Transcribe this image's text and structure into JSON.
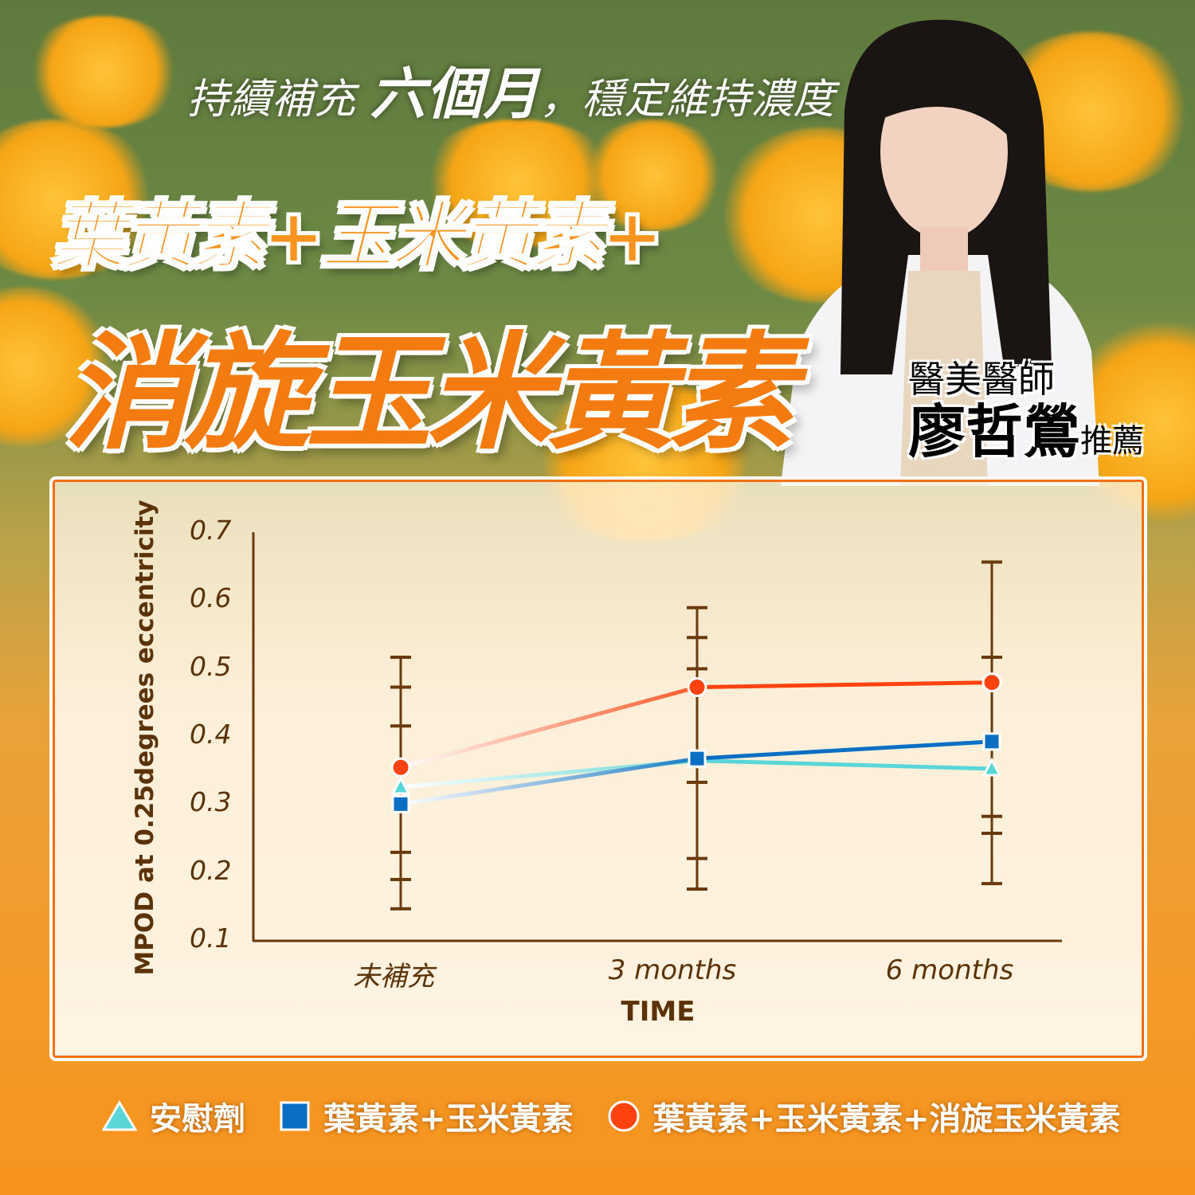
{
  "header": {
    "subtitle_pre": "持續補充 ",
    "subtitle_bold": "六個月",
    "subtitle_post": "，穩定維持濃度",
    "title_line1": "葉黃素+玉米黃素+",
    "title_line2": "消旋玉米黃素"
  },
  "doctor": {
    "role": "醫美醫師",
    "name": "廖哲鶯",
    "suffix": "推薦"
  },
  "chart_data": {
    "type": "line",
    "title": "",
    "xlabel": "TIME",
    "ylabel": "MPOD at 0.25degrees eccentricity",
    "categories": [
      "未補充",
      "3 months",
      "6 months"
    ],
    "ylim": [
      0.1,
      0.7
    ],
    "yticks": [
      "0.1",
      "0.2",
      "0.3",
      "0.4",
      "0.5",
      "0.6",
      "0.7"
    ],
    "grid": false,
    "legend_position": "bottom",
    "series": [
      {
        "name": "安慰劑",
        "marker": "triangle",
        "color": "#5ad6d8",
        "values": [
          0.325,
          0.364,
          0.352
        ]
      },
      {
        "name": "葉黃素+玉米黃素",
        "marker": "square",
        "color": "#0a6fc2",
        "values": [
          0.3,
          0.367,
          0.392
        ]
      },
      {
        "name": "葉黃素+玉米黃素+消旋玉米黃素",
        "marker": "circle",
        "color": "#ff4310",
        "values": [
          0.354,
          0.472,
          0.479
        ]
      }
    ],
    "error_bar_caps": [
      [
        0.516,
        0.472,
        0.415,
        0.229,
        0.189,
        0.146
      ],
      [
        0.589,
        0.545,
        0.499,
        0.332,
        0.22,
        0.175
      ],
      [
        0.656,
        0.516,
        0.282,
        0.257,
        0.183
      ]
    ],
    "error_bar_color": "#6b3a0c"
  }
}
